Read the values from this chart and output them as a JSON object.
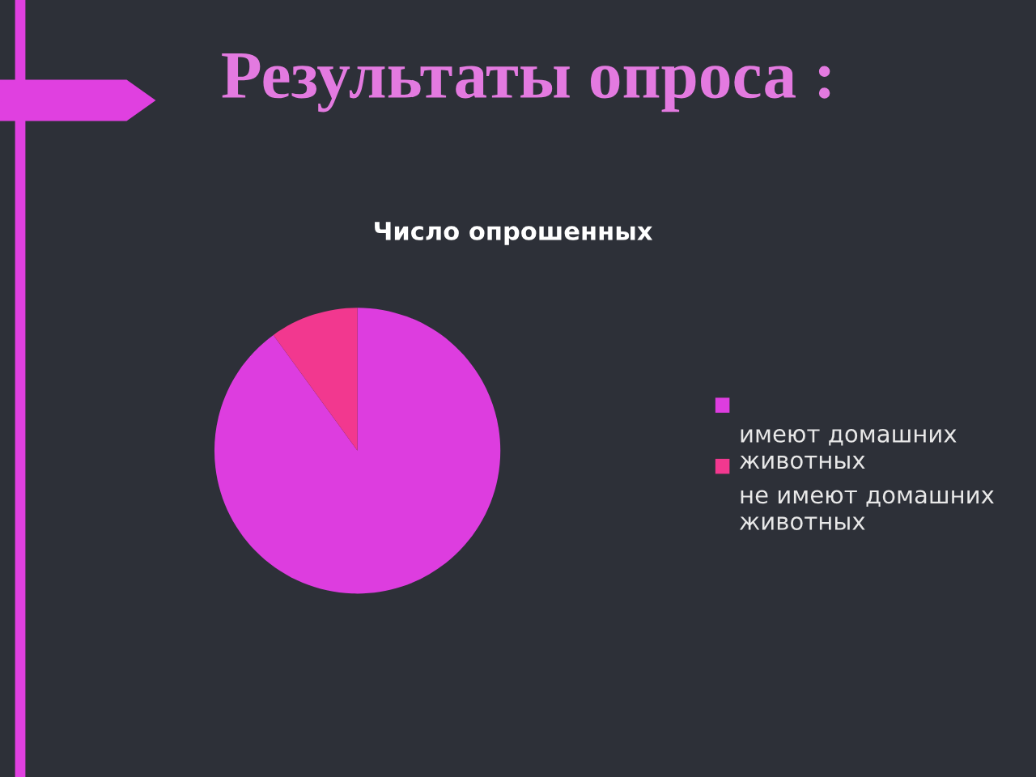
{
  "chart_data": {
    "type": "pie",
    "title": "Результаты опроса :",
    "subtitle": "Число опрошенных",
    "categories": [
      "имеют домашних животных",
      "не имеют домашних животных"
    ],
    "values": [
      90,
      10
    ],
    "colors": [
      "#dd3ddf",
      "#f2388f"
    ],
    "legend": "right"
  }
}
